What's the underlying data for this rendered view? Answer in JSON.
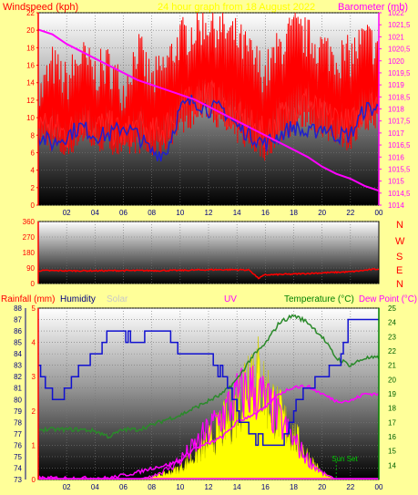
{
  "colors": {
    "background": "#ffff99",
    "wind": "#ff0000",
    "gust": "#ff0000",
    "avg_wind": "#2020cc",
    "barometer": "#ff00ff",
    "direction": "#ff0000",
    "humidity": "#1010d0",
    "solar": "#ffff00",
    "uv": "#ff00ff",
    "temperature": "#2a8a2a",
    "dewpoint": "#ff00ff",
    "rain": "#ff00ff",
    "text_red": "#ff0000",
    "text_dark": "#000080",
    "text_green": "#008000",
    "text_magenta": "#ff00ff"
  },
  "header": {
    "title_left": "Windspeed (kph)",
    "title_center": "24 hour graph from 18 August 2022",
    "title_right": "Barometer (mb)"
  },
  "compass": {
    "letters": [
      "N",
      "W",
      "S",
      "E",
      "N"
    ]
  },
  "bottom_labels": {
    "rainfall": "Rainfall (mm)",
    "humidity": "Humidity",
    "solar": "Solar",
    "uv": "UV",
    "temperature": "Temperature (°C)",
    "dewpoint": "Dew Point (°C)"
  },
  "annotations": {
    "sunset": "Sun Set"
  },
  "chart_data": [
    {
      "type": "line",
      "panel": "wind-barometer",
      "x_ticks": [
        "02",
        "04",
        "06",
        "08",
        "10",
        "12",
        "14",
        "16",
        "18",
        "20",
        "22",
        "00"
      ],
      "y_left": {
        "label": "Windspeed (kph)",
        "range": [
          0,
          22
        ],
        "ticks": [
          "0",
          "2",
          "4",
          "6",
          "8",
          "10",
          "12",
          "14",
          "16",
          "18",
          "20",
          "22"
        ]
      },
      "y_right": {
        "label": "Barometer (mb)",
        "range": [
          1014,
          1022
        ],
        "ticks": [
          "1014",
          "1014,5",
          "1015",
          "1015,5",
          "1016",
          "1016,5",
          "1017",
          "1017,5",
          "1018",
          "1018,5",
          "1019",
          "1019,5",
          "1020",
          "1020,5",
          "1021",
          "1021,5",
          "1022"
        ]
      },
      "x_hours": [
        0,
        1,
        2,
        3,
        4,
        5,
        6,
        7,
        8,
        9,
        10,
        11,
        12,
        13,
        14,
        15,
        16,
        17,
        18,
        19,
        20,
        21,
        22,
        23,
        24
      ],
      "series": [
        {
          "key": "gust",
          "values": [
            11,
            15,
            13,
            16,
            14,
            15,
            12,
            17,
            13,
            15,
            18,
            19,
            20,
            19,
            18,
            16,
            14,
            17,
            19,
            18,
            17,
            16,
            16,
            18,
            17
          ]
        },
        {
          "key": "wind",
          "values": [
            10,
            9,
            8,
            10,
            9,
            9,
            8,
            9,
            8,
            9,
            11,
            12,
            13,
            11,
            10,
            9,
            8,
            10,
            11,
            12,
            10,
            10,
            9,
            11,
            12
          ]
        },
        {
          "key": "avg_wind",
          "values": [
            8,
            7,
            8,
            9,
            8,
            8,
            9,
            8,
            6,
            6,
            11,
            12,
            11,
            11,
            9,
            8,
            7,
            8,
            9,
            8,
            9,
            8,
            8,
            11,
            11
          ]
        },
        {
          "key": "barometer",
          "values": [
            1021.3,
            1021.1,
            1020.7,
            1020.4,
            1020.1,
            1019.8,
            1019.5,
            1019.2,
            1019.0,
            1018.8,
            1018.6,
            1018.4,
            1018.1,
            1017.8,
            1017.5,
            1017.2,
            1016.9,
            1016.6,
            1016.3,
            1016.0,
            1015.6,
            1015.3,
            1015.1,
            1014.8,
            1014.6
          ]
        }
      ]
    },
    {
      "type": "line",
      "panel": "wind-direction",
      "y_left": {
        "range": [
          0,
          360
        ],
        "ticks": [
          "0",
          "90",
          "180",
          "270",
          "360"
        ]
      },
      "x_hours": [
        0,
        2,
        4,
        6,
        8,
        10,
        12,
        14,
        14.9,
        15.5,
        16,
        18,
        20,
        22,
        24
      ],
      "series": [
        {
          "key": "direction",
          "values": [
            75,
            74,
            74,
            75,
            75,
            76,
            80,
            80,
            78,
            30,
            50,
            55,
            62,
            68,
            85
          ]
        }
      ]
    },
    {
      "type": "line",
      "panel": "rain-humidity-solar-uv-temperature",
      "x_ticks": [
        "02",
        "04",
        "06",
        "08",
        "10",
        "12",
        "14",
        "16",
        "18",
        "20",
        "22",
        "00"
      ],
      "y_left_rain": {
        "range": [
          0,
          5
        ],
        "ticks": [
          "0",
          "1",
          "2",
          "3",
          "4",
          "5"
        ]
      },
      "y_left_humidity": {
        "range": [
          73,
          88
        ],
        "ticks": [
          "73",
          "74",
          "75",
          "76",
          "77",
          "78",
          "79",
          "80",
          "81",
          "82",
          "83",
          "84",
          "85",
          "86",
          "87",
          "88"
        ]
      },
      "y_right": {
        "range": [
          13,
          25
        ],
        "ticks": [
          "14",
          "15",
          "16",
          "17",
          "18",
          "19",
          "20",
          "21",
          "22",
          "23",
          "24",
          "25"
        ]
      },
      "x_hours": [
        0,
        1,
        2,
        3,
        4,
        5,
        6,
        7,
        8,
        9,
        10,
        11,
        12,
        13,
        14,
        15,
        16,
        17,
        18,
        19,
        20,
        21,
        22,
        23,
        24
      ],
      "series": [
        {
          "key": "humidity",
          "values": [
            83,
            80,
            81,
            83,
            84,
            86,
            86,
            85,
            86,
            86,
            84,
            84,
            84,
            82,
            79,
            77,
            76,
            76,
            79,
            81,
            82,
            83,
            87,
            87,
            87
          ]
        },
        {
          "key": "temperature",
          "values": [
            16.5,
            16.5,
            16.5,
            16.5,
            16.4,
            16,
            16.5,
            16.5,
            16.8,
            17.2,
            17.5,
            18,
            18.5,
            19,
            20,
            21.5,
            22.5,
            24,
            24.5,
            24,
            23,
            21.5,
            21,
            21.5,
            21.5
          ]
        },
        {
          "key": "dewpoint",
          "values": [
            13.1,
            13.1,
            13.1,
            13.1,
            13.1,
            13.1,
            13.3,
            13.5,
            13.8,
            14,
            14.3,
            15.2,
            15.5,
            16,
            17,
            17.5,
            18,
            19,
            19.5,
            19.5,
            19,
            18.5,
            18.5,
            19,
            19
          ]
        },
        {
          "key": "uv",
          "values": [
            0,
            0,
            0,
            0,
            0,
            0,
            0,
            0,
            0.1,
            0.3,
            0.6,
            1.0,
            1.5,
            2.0,
            2.5,
            2.8,
            2.4,
            1.8,
            1.2,
            0.6,
            0.2,
            0,
            0,
            0,
            0
          ]
        },
        {
          "key": "solar",
          "values": [
            0,
            0,
            0,
            0,
            0,
            0,
            0,
            0,
            0.1,
            0.2,
            0.4,
            0.8,
            1.3,
            1.8,
            2.5,
            4.0,
            3.0,
            2.2,
            1.5,
            0.8,
            0.2,
            0,
            0,
            0,
            0
          ]
        },
        {
          "key": "rain",
          "values": [
            0,
            0,
            0,
            0,
            0,
            0,
            0,
            0,
            0,
            0,
            0,
            0,
            0,
            0,
            0,
            0,
            0,
            0,
            0,
            0,
            0,
            0,
            0,
            0,
            0
          ]
        }
      ],
      "sunset_hour": 21.0
    }
  ]
}
